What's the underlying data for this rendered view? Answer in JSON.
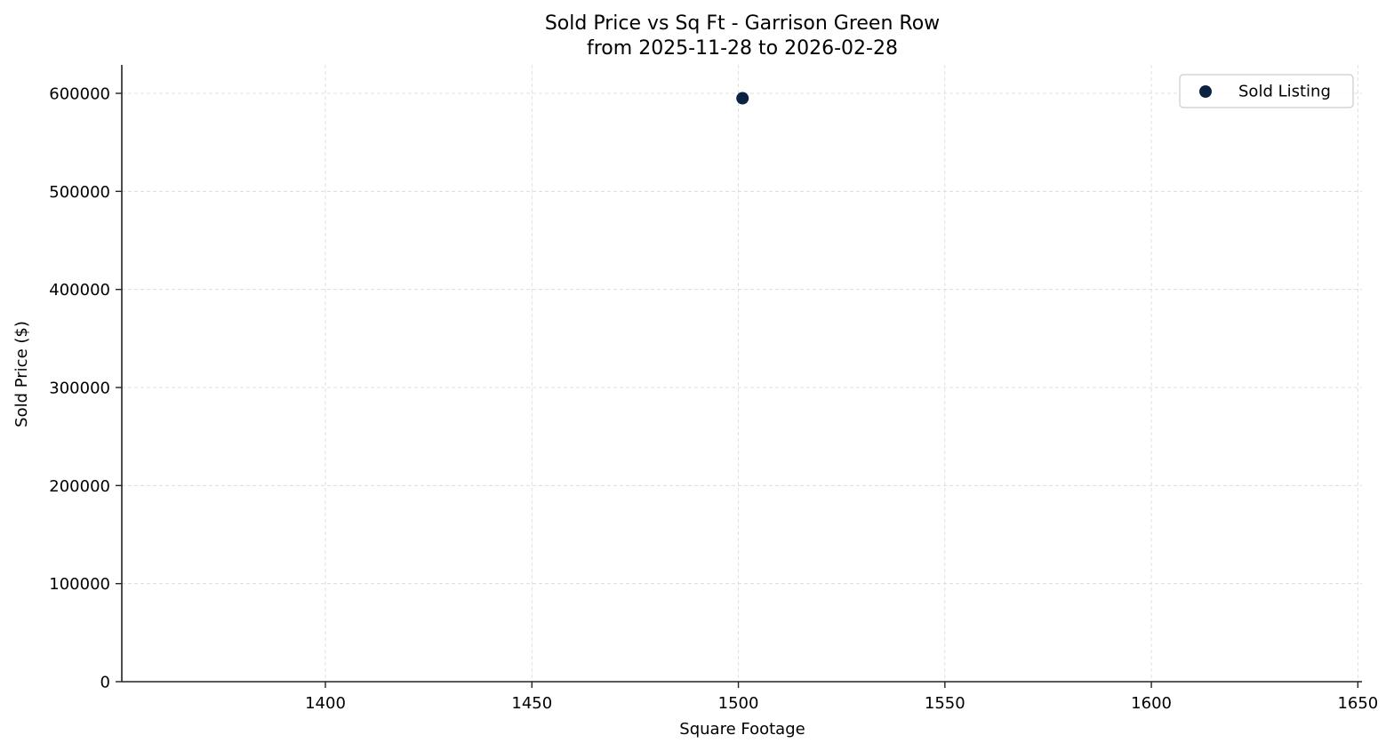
{
  "chart_data": {
    "type": "scatter",
    "title": "Sold Price vs Sq Ft - Garrison Green Row",
    "subtitle": "from 2025-11-28 to 2026-02-28",
    "xlabel": "Square Footage",
    "ylabel": "Sold Price ($)",
    "xlim": [
      1350.7,
      1651
    ],
    "ylim": [
      0,
      629000
    ],
    "x_ticks": [
      1400,
      1450,
      1500,
      1550,
      1600,
      1650
    ],
    "y_ticks": [
      0,
      100000,
      200000,
      300000,
      400000,
      500000,
      600000
    ],
    "grid": true,
    "legend_position": "upper right",
    "series": [
      {
        "name": "Sold Listing",
        "color": "#0b2341",
        "points": [
          {
            "x": 1501,
            "y": 595000
          }
        ]
      }
    ]
  },
  "colors": {
    "marker": "#0b2341",
    "grid": "#d9d9d9",
    "axis": "#222222",
    "legend_border": "#cccccc"
  }
}
